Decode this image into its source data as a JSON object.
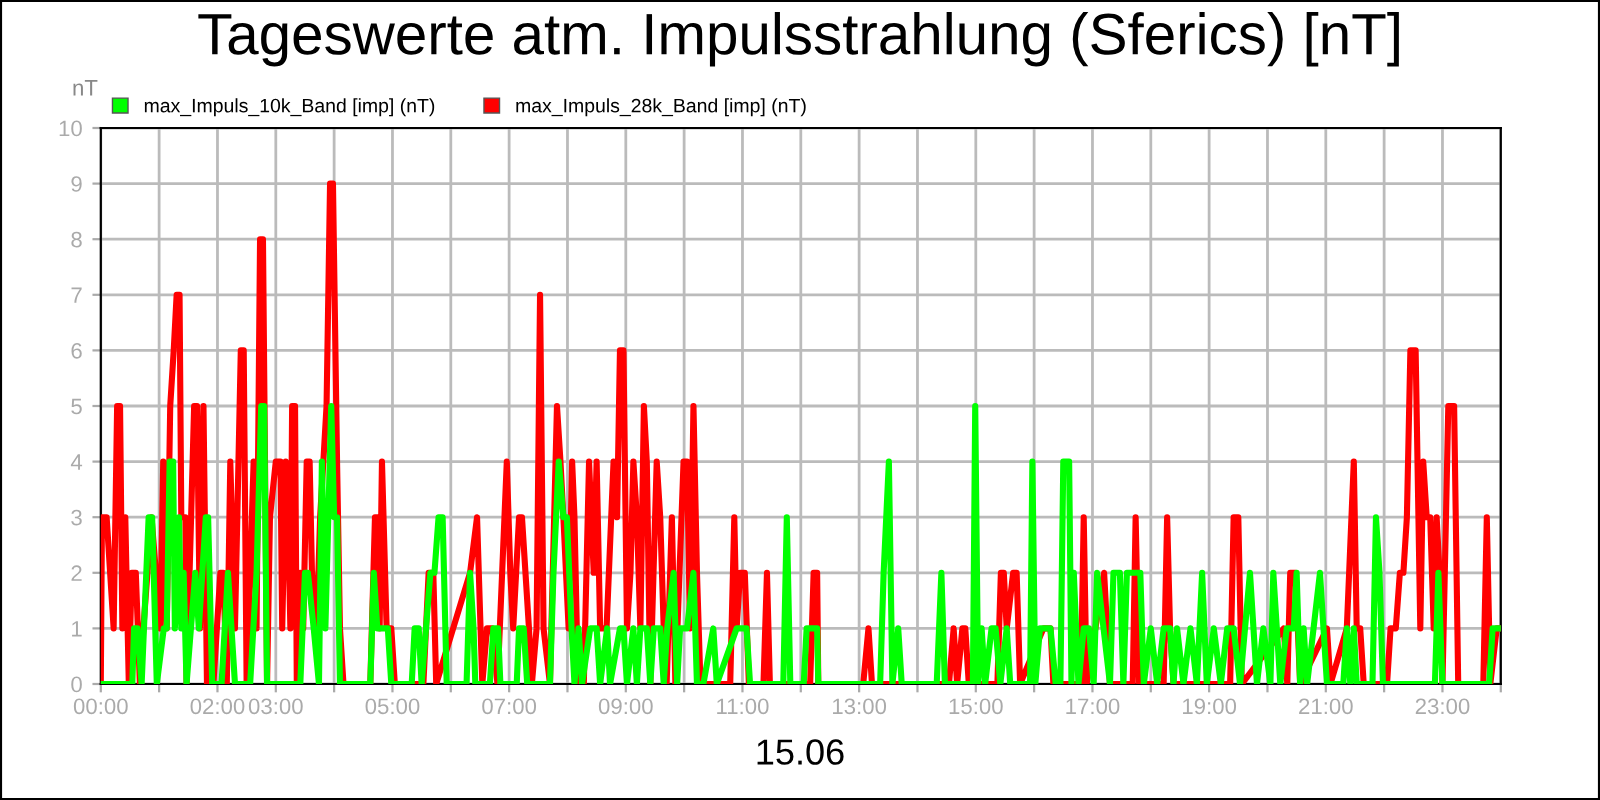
{
  "chart_data": {
    "type": "line",
    "title": "Tageswerte atm. Impulsstrahlung (Sferics) [nT]",
    "ylabel": "nT",
    "xlabel": "15.06",
    "xlim": [
      0,
      24
    ],
    "ylim": [
      0,
      10
    ],
    "yticks": [
      0,
      1,
      2,
      3,
      4,
      5,
      6,
      7,
      8,
      9,
      10
    ],
    "xticks": [
      {
        "value": 0,
        "label": "00:00"
      },
      {
        "value": 1,
        "label": null
      },
      {
        "value": 2,
        "label": "02:00"
      },
      {
        "value": 3,
        "label": "03:00"
      },
      {
        "value": 4,
        "label": null
      },
      {
        "value": 5,
        "label": "05:00"
      },
      {
        "value": 6,
        "label": null
      },
      {
        "value": 7,
        "label": "07:00"
      },
      {
        "value": 8,
        "label": null
      },
      {
        "value": 9,
        "label": "09:00"
      },
      {
        "value": 10,
        "label": null
      },
      {
        "value": 11,
        "label": "11:00"
      },
      {
        "value": 12,
        "label": null
      },
      {
        "value": 13,
        "label": "13:00"
      },
      {
        "value": 14,
        "label": null
      },
      {
        "value": 15,
        "label": "15:00"
      },
      {
        "value": 16,
        "label": null
      },
      {
        "value": 17,
        "label": "17:00"
      },
      {
        "value": 18,
        "label": null
      },
      {
        "value": 19,
        "label": "19:00"
      },
      {
        "value": 20,
        "label": null
      },
      {
        "value": 21,
        "label": "21:00"
      },
      {
        "value": 22,
        "label": null
      },
      {
        "value": 23,
        "label": "23:00"
      },
      {
        "value": 24,
        "label": null
      }
    ],
    "grid": true,
    "legend": "top left",
    "marker": "none",
    "line_style": "solid",
    "series": [
      {
        "name": "max_Impuls_10k_Band [imp] (nT)",
        "color": "#00ff00",
        "x": [
          0,
          0.54,
          0.57,
          0.63,
          0.7,
          0.82,
          0.88,
          0.96,
          1.08,
          1.13,
          1.18,
          1.24,
          1.27,
          1.34,
          1.38,
          1.42,
          1.47,
          1.62,
          1.68,
          1.8,
          1.84,
          1.91,
          2.07,
          2.18,
          2.3,
          2.56,
          2.67,
          2.75,
          2.8,
          2.85,
          3.42,
          3.5,
          3.55,
          3.65,
          3.74,
          3.79,
          3.85,
          3.95,
          4.0,
          4.05,
          4.1,
          4.62,
          4.68,
          4.74,
          4.85,
          4.92,
          4.98,
          5.33,
          5.38,
          5.45,
          5.5,
          5.65,
          5.72,
          5.79,
          5.86,
          5.93,
          6.27,
          6.33,
          6.39,
          6.42,
          6.67,
          6.73,
          6.81,
          6.85,
          7.13,
          7.17,
          7.25,
          7.31,
          7.7,
          7.76,
          7.85,
          7.93,
          7.99,
          8.07,
          8.12,
          8.19,
          8.25,
          8.39,
          8.5,
          8.56,
          8.68,
          8.73,
          8.9,
          8.96,
          9.02,
          9.13,
          9.19,
          9.25,
          9.36,
          9.42,
          9.48,
          9.59,
          9.65,
          9.71,
          9.82,
          9.88,
          9.93,
          10.05,
          10.16,
          10.22,
          10.33,
          10.5,
          10.56,
          10.9,
          11.07,
          11.13,
          11.7,
          11.76,
          11.82,
          12.05,
          12.1,
          12.22,
          12.28,
          12.3,
          13.36,
          13.42,
          13.51,
          13.57,
          13.67,
          13.73,
          14.33,
          14.41,
          14.47,
          14.95,
          14.99,
          15.04,
          15.1,
          15.16,
          15.27,
          15.34,
          15.42,
          15.53,
          15.59,
          15.93,
          15.97,
          16.02,
          16.1,
          16.22,
          16.28,
          16.37,
          16.45,
          16.5,
          16.6,
          16.64,
          16.68,
          16.76,
          16.85,
          16.94,
          17.02,
          17.08,
          17.19,
          17.3,
          17.36,
          17.47,
          17.53,
          17.59,
          17.7,
          17.82,
          17.88,
          18.0,
          18.11,
          18.22,
          18.33,
          18.39,
          18.45,
          18.56,
          18.68,
          18.79,
          18.88,
          18.96,
          19.08,
          19.2,
          19.31,
          19.42,
          19.53,
          19.7,
          19.82,
          19.93,
          20.05,
          20.1,
          20.22,
          20.33,
          20.39,
          20.45,
          20.5,
          20.56,
          20.62,
          20.68,
          20.79,
          20.9,
          20.96,
          21.02,
          21.3,
          21.36,
          21.42,
          21.48,
          21.53,
          21.8,
          21.86,
          21.92,
          21.98,
          22.87,
          22.93,
          23.0,
          23.8,
          23.86,
          24.0
        ],
        "values": [
          0,
          0,
          1,
          1,
          0,
          3,
          3,
          0,
          1,
          1,
          4,
          4,
          1,
          3,
          1,
          2,
          0,
          2,
          1,
          3,
          3,
          0,
          0,
          2,
          0,
          0,
          2,
          5,
          5,
          0,
          0,
          2,
          2,
          1,
          0,
          4,
          1,
          5,
          3,
          3,
          0,
          0,
          2,
          1,
          1,
          1,
          0,
          0,
          1,
          1,
          0,
          2,
          2,
          3,
          3,
          0,
          0,
          2,
          1,
          0,
          0,
          1,
          1,
          0,
          0,
          1,
          1,
          0,
          0,
          2,
          4,
          3,
          3,
          1,
          0,
          1,
          0,
          1,
          1,
          0,
          1,
          0,
          1,
          1,
          0,
          1,
          0,
          1,
          1,
          0,
          1,
          1,
          0,
          1,
          2,
          0,
          1,
          1,
          2,
          0,
          0,
          1,
          0,
          1,
          1,
          0,
          0,
          3,
          0,
          0,
          1,
          1,
          1,
          0,
          0,
          2,
          4,
          0,
          1,
          0,
          0,
          2,
          0,
          0,
          5,
          0,
          1,
          0,
          1,
          1,
          0,
          1,
          0,
          0,
          4,
          0,
          1,
          1,
          1,
          0,
          0,
          4,
          4,
          0,
          2,
          0,
          1,
          1,
          0,
          2,
          1,
          0,
          2,
          2,
          0,
          2,
          2,
          2,
          0,
          1,
          0,
          1,
          1,
          0,
          1,
          0,
          1,
          0,
          2,
          0,
          1,
          0,
          1,
          1,
          0,
          2,
          0,
          1,
          0,
          2,
          0,
          1,
          1,
          1,
          2,
          0,
          1,
          0,
          1,
          2,
          1,
          0,
          0,
          1,
          0,
          1,
          0,
          0,
          3,
          2,
          0,
          0,
          2,
          0,
          0,
          1,
          1
        ]
      },
      {
        "name": "max_Impuls_28k_Band [imp] (nT)",
        "color": "#ff0000",
        "x": [
          0,
          0.02,
          0.1,
          0.16,
          0.22,
          0.28,
          0.33,
          0.37,
          0.42,
          0.48,
          0.53,
          0.6,
          0.67,
          0.73,
          0.87,
          1.02,
          1.07,
          1.13,
          1.19,
          1.25,
          1.3,
          1.35,
          1.38,
          1.45,
          1.47,
          1.6,
          1.65,
          1.7,
          1.76,
          1.82,
          1.93,
          2.05,
          2.1,
          2.16,
          2.22,
          2.3,
          2.4,
          2.45,
          2.5,
          2.62,
          2.67,
          2.73,
          2.78,
          2.85,
          2.9,
          3.0,
          3.08,
          3.11,
          3.17,
          3.21,
          3.25,
          3.28,
          3.33,
          3.36,
          3.42,
          3.47,
          3.53,
          3.58,
          3.62,
          3.7,
          3.76,
          3.87,
          3.93,
          3.98,
          4.05,
          4.1,
          4.16,
          4.62,
          4.7,
          4.75,
          4.78,
          4.82,
          4.9,
          4.98,
          5.04,
          5.53,
          5.62,
          5.7,
          5.75,
          6.33,
          6.45,
          6.54,
          6.62,
          6.71,
          6.8,
          6.96,
          7.02,
          7.07,
          7.17,
          7.22,
          7.28,
          7.34,
          7.39,
          7.47,
          7.53,
          7.59,
          7.7,
          7.82,
          7.88,
          7.93,
          8.02,
          8.08,
          8.12,
          8.18,
          8.28,
          8.37,
          8.45,
          8.5,
          8.56,
          8.67,
          8.79,
          8.85,
          8.9,
          8.96,
          9.02,
          9.08,
          9.13,
          9.19,
          9.25,
          9.31,
          9.36,
          9.42,
          9.53,
          9.59,
          9.65,
          9.7,
          9.79,
          9.85,
          9.99,
          10.05,
          10.1,
          10.16,
          10.22,
          10.28,
          10.79,
          10.86,
          10.9,
          10.96,
          11.04,
          11.11,
          11.36,
          11.42,
          11.47,
          12.16,
          12.22,
          12.28,
          12.3,
          13.07,
          13.16,
          13.22,
          14.54,
          14.62,
          14.68,
          14.77,
          14.82,
          14.88,
          15.37,
          15.43,
          15.48,
          15.53,
          15.64,
          15.7,
          15.76,
          16.16,
          16.28,
          16.33,
          16.8,
          16.85,
          16.9,
          17.2,
          17.25,
          17.3,
          17.69,
          17.74,
          17.8,
          18.22,
          18.28,
          18.33,
          18.39,
          19.36,
          19.42,
          19.5,
          19.56,
          20.28,
          20.34,
          20.39,
          20.48,
          20.56,
          21.02,
          21.08,
          21.36,
          21.48,
          21.53,
          21.59,
          21.65,
          22.05,
          22.11,
          22.2,
          22.27,
          22.33,
          22.39,
          22.45,
          22.54,
          22.62,
          22.67,
          22.73,
          22.79,
          22.85,
          22.9,
          22.95,
          23.0,
          23.1,
          23.2,
          23.27,
          23.7,
          23.76,
          23.82,
          23.93,
          24.0
        ],
        "values": [
          0,
          3,
          3,
          2,
          1,
          5,
          5,
          1,
          3,
          0,
          2,
          2,
          0,
          1,
          3,
          1,
          4,
          1,
          5,
          6,
          7,
          7,
          3,
          3,
          0,
          5,
          5,
          1,
          5,
          0,
          0,
          2,
          2,
          0,
          4,
          1,
          6,
          6,
          0,
          4,
          1,
          8,
          8,
          0,
          3,
          4,
          4,
          1,
          4,
          3,
          1,
          5,
          5,
          0,
          2,
          1,
          4,
          4,
          2,
          1,
          3,
          5,
          9,
          9,
          4,
          1,
          0,
          0,
          3,
          3,
          1,
          4,
          1,
          1,
          0,
          0,
          2,
          2,
          0,
          2,
          3,
          0,
          1,
          1,
          0,
          4,
          2,
          1,
          3,
          3,
          2,
          1,
          0,
          1,
          7,
          1,
          0,
          5,
          4,
          3,
          1,
          4,
          3,
          0,
          0,
          4,
          2,
          4,
          1,
          1,
          4,
          3,
          6,
          6,
          1,
          2,
          4,
          3,
          1,
          5,
          4,
          0,
          4,
          3,
          1,
          0,
          3,
          0,
          4,
          4,
          1,
          5,
          2,
          0,
          0,
          3,
          1,
          2,
          2,
          0,
          0,
          2,
          0,
          0,
          2,
          2,
          0,
          0,
          1,
          0,
          0,
          1,
          0,
          1,
          1,
          0,
          0,
          2,
          2,
          1,
          2,
          2,
          0,
          1,
          1,
          0,
          0,
          3,
          0,
          2,
          1,
          0,
          0,
          3,
          0,
          0,
          3,
          1,
          0,
          0,
          3,
          3,
          0,
          1,
          0,
          2,
          2,
          0,
          1,
          0,
          1,
          4,
          1,
          1,
          0,
          0,
          1,
          1,
          2,
          2,
          3,
          6,
          6,
          1,
          4,
          3,
          3,
          1,
          3,
          2,
          0,
          5,
          5,
          0,
          0,
          3,
          0,
          1,
          1
        ]
      }
    ]
  }
}
